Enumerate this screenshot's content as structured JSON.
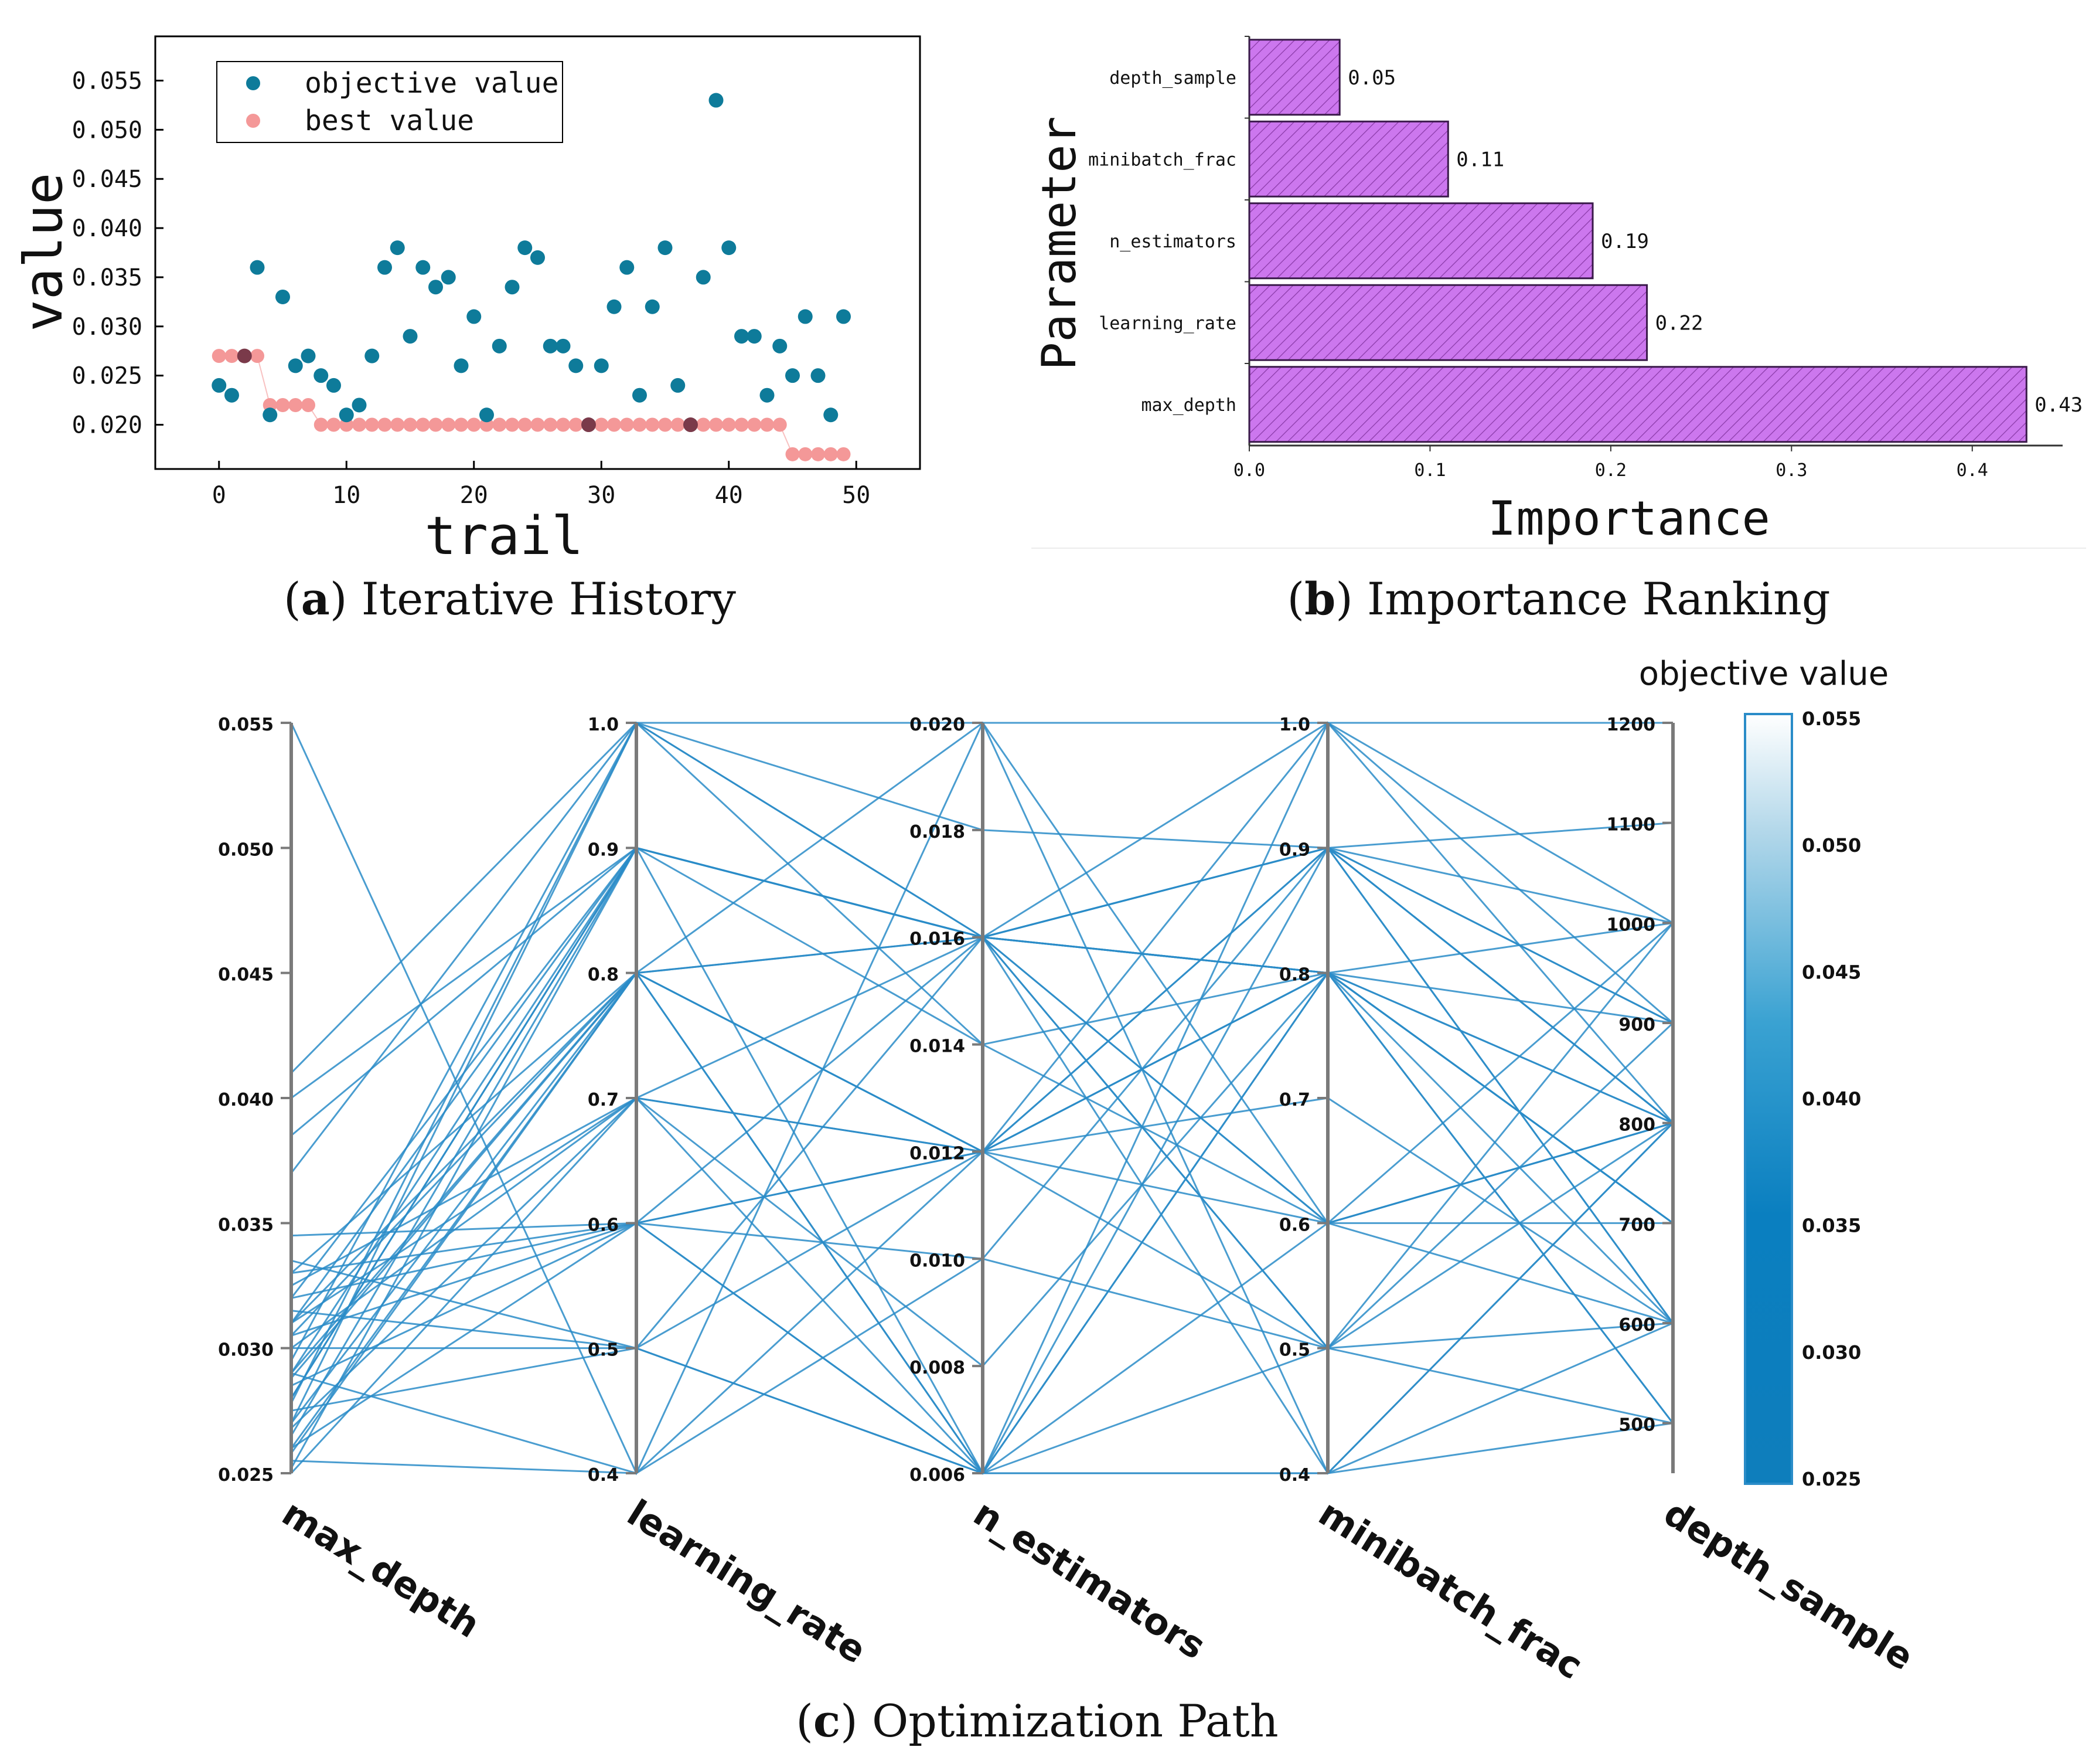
{
  "captions": {
    "a": {
      "letter": "a",
      "text": "Iterative History"
    },
    "b": {
      "letter": "b",
      "text": "Importance Ranking"
    },
    "c": {
      "letter": "c",
      "text": "Optimization Path"
    }
  },
  "colors": {
    "objective": "#0e7b9a",
    "best": "#f49898",
    "best_dark": "#7a3a4a",
    "bar_fill": "#cc77ee",
    "bar_edge": "#3a1a4a",
    "path_line": "#2a8cc8"
  },
  "chart_data": [
    {
      "type": "scatter",
      "panel": "a",
      "xlabel": "trail",
      "ylabel": "value",
      "xlim": [
        -5,
        55
      ],
      "ylim": [
        0.0155,
        0.0595
      ],
      "xticks": [
        0,
        10,
        20,
        30,
        40,
        50
      ],
      "xtick_labels": [
        "0",
        "10",
        "20",
        "30",
        "40",
        "50"
      ],
      "yticks": [
        0.02,
        0.025,
        0.03,
        0.035,
        0.04,
        0.045,
        0.05,
        0.055
      ],
      "ytick_labels": [
        "0.020",
        "0.025",
        "0.030",
        "0.035",
        "0.040",
        "0.045",
        "0.050",
        "0.055"
      ],
      "legend": {
        "position": "top-left",
        "entries": [
          "objective value",
          "best value"
        ]
      },
      "series": [
        {
          "name": "objective value",
          "x": [
            0,
            1,
            2,
            3,
            4,
            5,
            6,
            7,
            8,
            9,
            10,
            11,
            12,
            13,
            14,
            15,
            16,
            17,
            18,
            19,
            20,
            21,
            22,
            23,
            24,
            25,
            26,
            27,
            28,
            29,
            30,
            31,
            32,
            33,
            34,
            35,
            36,
            37,
            38,
            39,
            40,
            41,
            42,
            43,
            44,
            45,
            46,
            47,
            48,
            49
          ],
          "y": [
            0.024,
            0.023,
            0.027,
            0.036,
            0.021,
            0.033,
            0.026,
            0.027,
            0.025,
            0.024,
            0.021,
            0.022,
            0.027,
            0.036,
            0.038,
            0.029,
            0.036,
            0.034,
            0.035,
            0.026,
            0.031,
            0.021,
            0.028,
            0.034,
            0.038,
            0.037,
            0.028,
            0.028,
            0.026,
            0.02,
            0.026,
            0.032,
            0.036,
            0.023,
            0.032,
            0.038,
            0.024,
            0.02,
            0.035,
            0.053,
            0.038,
            0.029,
            0.029,
            0.023,
            0.028,
            0.025,
            0.031,
            0.025,
            0.021,
            0.031
          ]
        },
        {
          "name": "best value",
          "x": [
            0,
            1,
            2,
            3,
            4,
            5,
            6,
            7,
            8,
            9,
            10,
            11,
            12,
            13,
            14,
            15,
            16,
            17,
            18,
            19,
            20,
            21,
            22,
            23,
            24,
            25,
            26,
            27,
            28,
            29,
            30,
            31,
            32,
            33,
            34,
            35,
            36,
            37,
            38,
            39,
            40,
            41,
            42,
            43,
            44,
            45,
            46,
            47,
            48,
            49
          ],
          "y": [
            0.027,
            0.027,
            0.027,
            0.027,
            0.022,
            0.022,
            0.022,
            0.022,
            0.02,
            0.02,
            0.02,
            0.02,
            0.02,
            0.02,
            0.02,
            0.02,
            0.02,
            0.02,
            0.02,
            0.02,
            0.02,
            0.02,
            0.02,
            0.02,
            0.02,
            0.02,
            0.02,
            0.02,
            0.02,
            0.02,
            0.02,
            0.02,
            0.02,
            0.02,
            0.02,
            0.02,
            0.02,
            0.02,
            0.02,
            0.02,
            0.02,
            0.02,
            0.02,
            0.02,
            0.02,
            0.017,
            0.017,
            0.017,
            0.017,
            0.017
          ]
        }
      ]
    },
    {
      "type": "bar",
      "panel": "b",
      "orientation": "horizontal",
      "xlabel": "Importance",
      "ylabel": "Parameter",
      "xlim": [
        0,
        0.45
      ],
      "xticks": [
        0.0,
        0.1,
        0.2,
        0.3,
        0.4
      ],
      "xtick_labels": [
        "0.0",
        "0.1",
        "0.2",
        "0.3",
        "0.4"
      ],
      "categories": [
        "depth_sample",
        "minibatch_frac",
        "n_estimators",
        "learning_rate",
        "max_depth"
      ],
      "values": [
        0.05,
        0.11,
        0.19,
        0.22,
        0.43
      ],
      "value_labels": [
        "0.05",
        "0.11",
        "0.19",
        "0.22",
        "0.43"
      ]
    },
    {
      "type": "parallel_coordinates",
      "panel": "c",
      "colorbar": {
        "title": "objective value",
        "range": [
          0.025,
          0.055
        ],
        "ticks": [
          0.025,
          0.03,
          0.035,
          0.04,
          0.045,
          0.05,
          0.055
        ],
        "tick_labels": [
          "0.025",
          "0.030",
          "0.035",
          "0.040",
          "0.045",
          "0.050",
          "0.055"
        ]
      },
      "axes": [
        {
          "name": "max_depth",
          "range": [
            0.025,
            0.055
          ],
          "ticks": [
            0.025,
            0.03,
            0.035,
            0.04,
            0.045,
            0.05,
            0.055
          ],
          "tick_labels": [
            "0.025",
            "0.030",
            "0.035",
            "0.040",
            "0.045",
            "0.050",
            "0.055"
          ]
        },
        {
          "name": "learning_rate",
          "range": [
            0.4,
            1.0
          ],
          "ticks": [
            0.4,
            0.5,
            0.6,
            0.7,
            0.8,
            0.9,
            1.0
          ],
          "tick_labels": [
            "0.4",
            "0.5",
            "0.6",
            "0.7",
            "0.8",
            "0.9",
            "1.0"
          ]
        },
        {
          "name": "n_estimators",
          "range": [
            0.006,
            0.02
          ],
          "ticks": [
            0.006,
            0.008,
            0.01,
            0.012,
            0.014,
            0.016,
            0.018,
            0.02
          ],
          "tick_labels": [
            "0.006",
            "0.008",
            "0.010",
            "0.012",
            "0.014",
            "0.016",
            "0.018",
            "0.020"
          ]
        },
        {
          "name": "minibatch_frac",
          "range": [
            0.4,
            1.0
          ],
          "ticks": [
            0.4,
            0.5,
            0.6,
            0.7,
            0.8,
            0.9,
            1.0
          ],
          "tick_labels": [
            "0.4",
            "0.5",
            "0.6",
            "0.7",
            "0.8",
            "0.9",
            "1.0"
          ]
        },
        {
          "name": "depth_sample",
          "range": [
            450,
            1200
          ],
          "ticks": [
            500,
            600,
            700,
            800,
            900,
            1000,
            1100,
            1200
          ],
          "tick_labels": [
            "500",
            "600",
            "700",
            "800",
            "900",
            "1000",
            "1100",
            "1200"
          ]
        }
      ],
      "lines": [
        [
          0.055,
          0.4,
          0.02,
          1.0,
          1200
        ],
        [
          0.041,
          1.0,
          0.018,
          0.9,
          1100
        ],
        [
          0.04,
          0.9,
          0.016,
          0.8,
          1000
        ],
        [
          0.0385,
          0.9,
          0.016,
          0.9,
          900
        ],
        [
          0.037,
          1.0,
          0.014,
          0.6,
          800
        ],
        [
          0.0345,
          0.6,
          0.016,
          0.8,
          700
        ],
        [
          0.0335,
          0.5,
          0.012,
          0.7,
          600
        ],
        [
          0.033,
          0.8,
          0.006,
          0.5,
          500
        ],
        [
          0.0325,
          0.7,
          0.012,
          0.8,
          800
        ],
        [
          0.032,
          0.6,
          0.01,
          0.9,
          1000
        ],
        [
          0.0315,
          0.5,
          0.006,
          0.4,
          500
        ],
        [
          0.031,
          0.9,
          0.016,
          0.6,
          800
        ],
        [
          0.0305,
          0.8,
          0.012,
          1.0,
          900
        ],
        [
          0.03,
          0.7,
          0.008,
          0.8,
          700
        ],
        [
          0.0295,
          1.0,
          0.02,
          0.4,
          800
        ],
        [
          0.029,
          0.9,
          0.016,
          0.8,
          600
        ],
        [
          0.0288,
          0.8,
          0.012,
          0.6,
          1000
        ],
        [
          0.0285,
          0.6,
          0.006,
          1.0,
          800
        ],
        [
          0.028,
          0.9,
          0.016,
          0.5,
          900
        ],
        [
          0.0278,
          1.0,
          0.016,
          0.8,
          700
        ],
        [
          0.0275,
          0.5,
          0.006,
          0.6,
          600
        ],
        [
          0.027,
          0.8,
          0.016,
          0.9,
          800
        ],
        [
          0.0268,
          0.7,
          0.006,
          0.8,
          500
        ],
        [
          0.0265,
          0.9,
          0.016,
          0.5,
          1000
        ],
        [
          0.026,
          0.6,
          0.012,
          0.9,
          600
        ],
        [
          0.0258,
          0.8,
          0.02,
          0.6,
          800
        ],
        [
          0.0255,
          0.4,
          0.012,
          0.8,
          700
        ],
        [
          0.0252,
          0.9,
          0.006,
          0.4,
          800
        ],
        [
          0.025,
          0.7,
          0.016,
          0.9,
          900
        ],
        [
          0.031,
          0.8,
          0.012,
          0.9,
          800
        ],
        [
          0.03,
          0.5,
          0.016,
          0.9,
          600
        ],
        [
          0.029,
          0.4,
          0.01,
          0.5,
          600
        ],
        [
          0.028,
          0.9,
          0.014,
          0.8,
          800
        ],
        [
          0.027,
          1.0,
          0.016,
          0.6,
          700
        ],
        [
          0.026,
          0.8,
          0.006,
          0.9,
          800
        ],
        [
          0.033,
          0.6,
          0.012,
          0.8,
          500
        ],
        [
          0.032,
          0.9,
          0.016,
          1.0,
          1000
        ],
        [
          0.031,
          0.7,
          0.012,
          0.5,
          800
        ],
        [
          0.0305,
          0.6,
          0.006,
          0.8,
          900
        ],
        [
          0.029,
          0.8,
          0.016,
          0.4,
          600
        ]
      ]
    }
  ]
}
